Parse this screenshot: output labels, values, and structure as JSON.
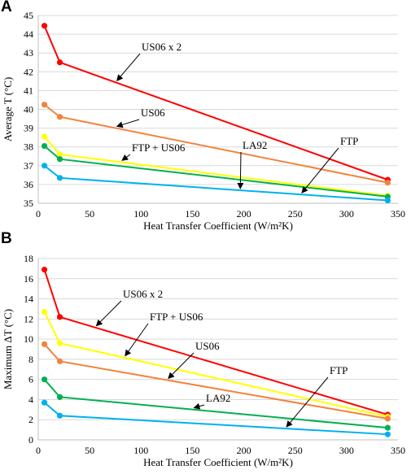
{
  "chart_data": [
    {
      "panel": "A",
      "type": "line",
      "xlabel": "Heat Transfer Coefficient (W/m²K)",
      "ylabel": "Average T (°C)",
      "xlim": [
        0,
        350
      ],
      "ylim": [
        35,
        45
      ],
      "xticks": [
        0,
        50,
        100,
        150,
        200,
        250,
        300,
        350
      ],
      "yticks": [
        35,
        36,
        37,
        38,
        39,
        40,
        41,
        42,
        43,
        44,
        45
      ],
      "grid": "horizontal",
      "x": [
        6,
        21,
        340
      ],
      "series": [
        {
          "name": "US06 x 2",
          "color": "#ff0000",
          "values": [
            44.45,
            42.5,
            36.25
          ]
        },
        {
          "name": "US06",
          "color": "#f4823c",
          "values": [
            40.25,
            39.6,
            36.1
          ]
        },
        {
          "name": "FTP + US06",
          "color": "#ffff00",
          "values": [
            38.55,
            37.6,
            35.4
          ]
        },
        {
          "name": "FTP",
          "color": "#00b050",
          "values": [
            38.05,
            37.35,
            35.35
          ]
        },
        {
          "name": "LA92",
          "color": "#00b0f0",
          "values": [
            37.0,
            36.35,
            35.15
          ]
        }
      ],
      "annotations": [
        {
          "text": "US06 x 2",
          "target_series": "US06 x 2",
          "target_x": 75
        },
        {
          "text": "US06",
          "target_series": "US06",
          "target_x": 75
        },
        {
          "text": "FTP + US06",
          "target_series": "FTP + US06",
          "target_x": 80
        },
        {
          "text": "LA92",
          "target_series": "LA92",
          "target_x": 195
        },
        {
          "text": "FTP",
          "target_series": "LA92",
          "target_x": 255
        }
      ]
    },
    {
      "panel": "B",
      "type": "line",
      "xlabel": "Heat Transfer Coefficient (W/m²K)",
      "ylabel": "Maximum ΔT (°C)",
      "xlim": [
        0,
        350
      ],
      "ylim": [
        0,
        18
      ],
      "xticks": [
        0,
        50,
        100,
        150,
        200,
        250,
        300,
        350
      ],
      "yticks": [
        0,
        2,
        4,
        6,
        8,
        10,
        12,
        14,
        16,
        18
      ],
      "grid": "horizontal",
      "x": [
        6,
        21,
        340
      ],
      "series": [
        {
          "name": "US06 x 2",
          "color": "#ff0000",
          "values": [
            16.9,
            12.2,
            2.5
          ]
        },
        {
          "name": "FTP + US06",
          "color": "#ffff00",
          "values": [
            12.7,
            9.6,
            2.3
          ]
        },
        {
          "name": "US06",
          "color": "#f4823c",
          "values": [
            9.5,
            7.8,
            2.1
          ]
        },
        {
          "name": "FTP",
          "color": "#00b050",
          "values": [
            6.0,
            4.25,
            1.2
          ]
        },
        {
          "name": "LA92",
          "color": "#00b0f0",
          "values": [
            3.7,
            2.4,
            0.55
          ]
        }
      ],
      "annotations": [
        {
          "text": "US06 x 2",
          "target_series": "US06 x 2",
          "target_x": 55
        },
        {
          "text": "FTP + US06",
          "target_series": "FTP + US06",
          "target_x": 83
        },
        {
          "text": "US06",
          "target_series": "US06",
          "target_x": 125
        },
        {
          "text": "LA92",
          "target_series": "FTP",
          "target_x": 150
        },
        {
          "text": "FTP",
          "target_series": "LA92",
          "target_x": 240
        }
      ]
    }
  ]
}
